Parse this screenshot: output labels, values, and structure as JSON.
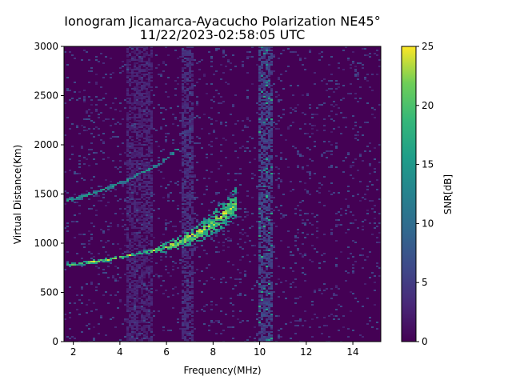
{
  "chart_data": {
    "type": "heatmap",
    "title": "Ionogram Jicamarca-Ayacucho Polarization NE45°",
    "subtitle": "11/22/2023-02:58:05 UTC",
    "xlabel": "Frequency(MHz)",
    "ylabel": "Virtual Distance(Km)",
    "xlim": [
      1.6,
      15.2
    ],
    "ylim": [
      0,
      3000
    ],
    "x_ticks": [
      2,
      4,
      6,
      8,
      10,
      12,
      14
    ],
    "x_tick_labels": [
      "2",
      "4",
      "6",
      "8",
      "10",
      "12",
      "14"
    ],
    "y_ticks": [
      0,
      500,
      1000,
      1500,
      2000,
      2500,
      3000
    ],
    "y_tick_labels": [
      "0",
      "500",
      "1000",
      "1500",
      "2000",
      "2500",
      "3000"
    ],
    "colorbar": {
      "label": "SNR[dB]",
      "range": [
        0,
        25
      ],
      "ticks": [
        0,
        5,
        10,
        15,
        20,
        25
      ],
      "tick_labels": [
        "0",
        "5",
        "10",
        "15",
        "20",
        "25"
      ],
      "colormap": "viridis"
    },
    "grid": false,
    "traces": [
      {
        "description_type": "ordinary-reflection",
        "points": [
          {
            "x": 1.7,
            "y": 780
          },
          {
            "x": 2.5,
            "y": 800
          },
          {
            "x": 3.5,
            "y": 830
          },
          {
            "x": 4.5,
            "y": 880
          },
          {
            "x": 5.5,
            "y": 930
          },
          {
            "x": 6.5,
            "y": 1000
          },
          {
            "x": 7.5,
            "y": 1120
          },
          {
            "x": 8.3,
            "y": 1260
          },
          {
            "x": 9.0,
            "y": 1420
          }
        ],
        "snr_db": 24
      },
      {
        "description_type": "second-hop-reflection",
        "points": [
          {
            "x": 1.7,
            "y": 1430
          },
          {
            "x": 2.5,
            "y": 1480
          },
          {
            "x": 3.5,
            "y": 1560
          },
          {
            "x": 4.5,
            "y": 1660
          },
          {
            "x": 5.5,
            "y": 1780
          },
          {
            "x": 6.5,
            "y": 1950
          }
        ],
        "snr_db": 16
      }
    ],
    "interference_bands_mhz": [
      {
        "from": 4.3,
        "to": 5.4,
        "snr_db": 3
      },
      {
        "from": 6.6,
        "to": 7.2,
        "snr_db": 4
      },
      {
        "from": 9.9,
        "to": 10.6,
        "snr_db": 6
      }
    ]
  },
  "colors": {
    "background": "#ffffff",
    "viridis_low": "#440154",
    "viridis_mid": "#21918c",
    "viridis_high": "#fde725"
  }
}
